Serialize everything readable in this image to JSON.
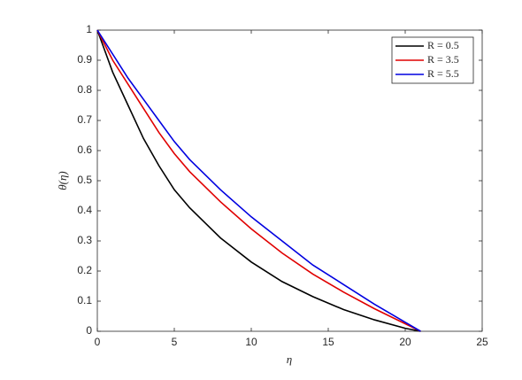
{
  "chart_data": {
    "type": "line",
    "x_label": "η",
    "y_label": "θ(η)",
    "x": [
      0,
      1,
      2,
      3,
      4,
      5,
      6,
      8,
      10,
      12,
      14,
      16,
      18,
      20,
      21
    ],
    "series": [
      {
        "name": "R = 0.5",
        "color": "#000000",
        "values": [
          1,
          0.86,
          0.75,
          0.64,
          0.55,
          0.47,
          0.41,
          0.31,
          0.23,
          0.165,
          0.115,
          0.072,
          0.038,
          0.01,
          0
        ]
      },
      {
        "name": "R = 3.5",
        "color": "#e00000",
        "values": [
          1,
          0.9,
          0.82,
          0.74,
          0.66,
          0.59,
          0.53,
          0.43,
          0.34,
          0.26,
          0.19,
          0.13,
          0.075,
          0.025,
          0
        ]
      },
      {
        "name": "R = 5.5",
        "color": "#0000e0",
        "values": [
          1,
          0.92,
          0.84,
          0.77,
          0.7,
          0.63,
          0.57,
          0.47,
          0.38,
          0.3,
          0.22,
          0.155,
          0.09,
          0.03,
          0
        ]
      }
    ],
    "xlim": [
      0,
      25
    ],
    "xticks": [
      0,
      5,
      10,
      15,
      20,
      25
    ],
    "ylim": [
      0,
      1
    ],
    "yticks": [
      0,
      0.1,
      0.2,
      0.3,
      0.4,
      0.5,
      0.6,
      0.7,
      0.8,
      0.9,
      1
    ],
    "legend": "top-right",
    "grid": false
  }
}
